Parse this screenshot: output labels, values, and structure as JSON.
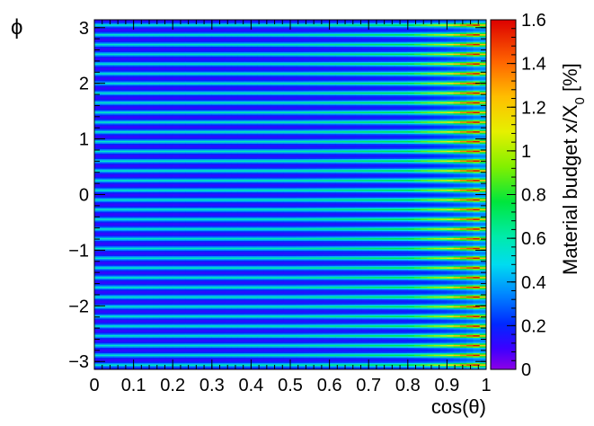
{
  "chart_data": {
    "type": "heatmap",
    "xlabel": "cos(θ)",
    "ylabel": "ϕ",
    "xlim": [
      0,
      1
    ],
    "ylim": [
      -3.1416,
      3.1416
    ],
    "x_ticks": [
      "0",
      "0.1",
      "0.2",
      "0.3",
      "0.4",
      "0.5",
      "0.6",
      "0.7",
      "0.8",
      "0.9",
      "1"
    ],
    "y_ticks": [
      "−3",
      "−2",
      "−1",
      "0",
      "1",
      "2",
      "3"
    ],
    "colorbar": {
      "label_main": "Material budget x/X",
      "label_sub": "0",
      "label_unit": " [%]",
      "range": [
        0,
        1.6
      ],
      "ticks": [
        "0",
        "0.2",
        "0.4",
        "0.6",
        "0.8",
        "1",
        "1.2",
        "1.4",
        "1.6"
      ]
    },
    "grid": false,
    "n_stripes": 36,
    "profile": {
      "description_x": [
        0,
        0.5,
        0.8,
        0.9,
        0.95,
        0.98,
        1.0
      ],
      "baseline": [
        0.18,
        0.2,
        0.24,
        0.3,
        0.35,
        0.4,
        0.4
      ],
      "ridge_peak": [
        0.55,
        0.6,
        0.75,
        1.05,
        1.4,
        1.6,
        1.0
      ]
    }
  }
}
